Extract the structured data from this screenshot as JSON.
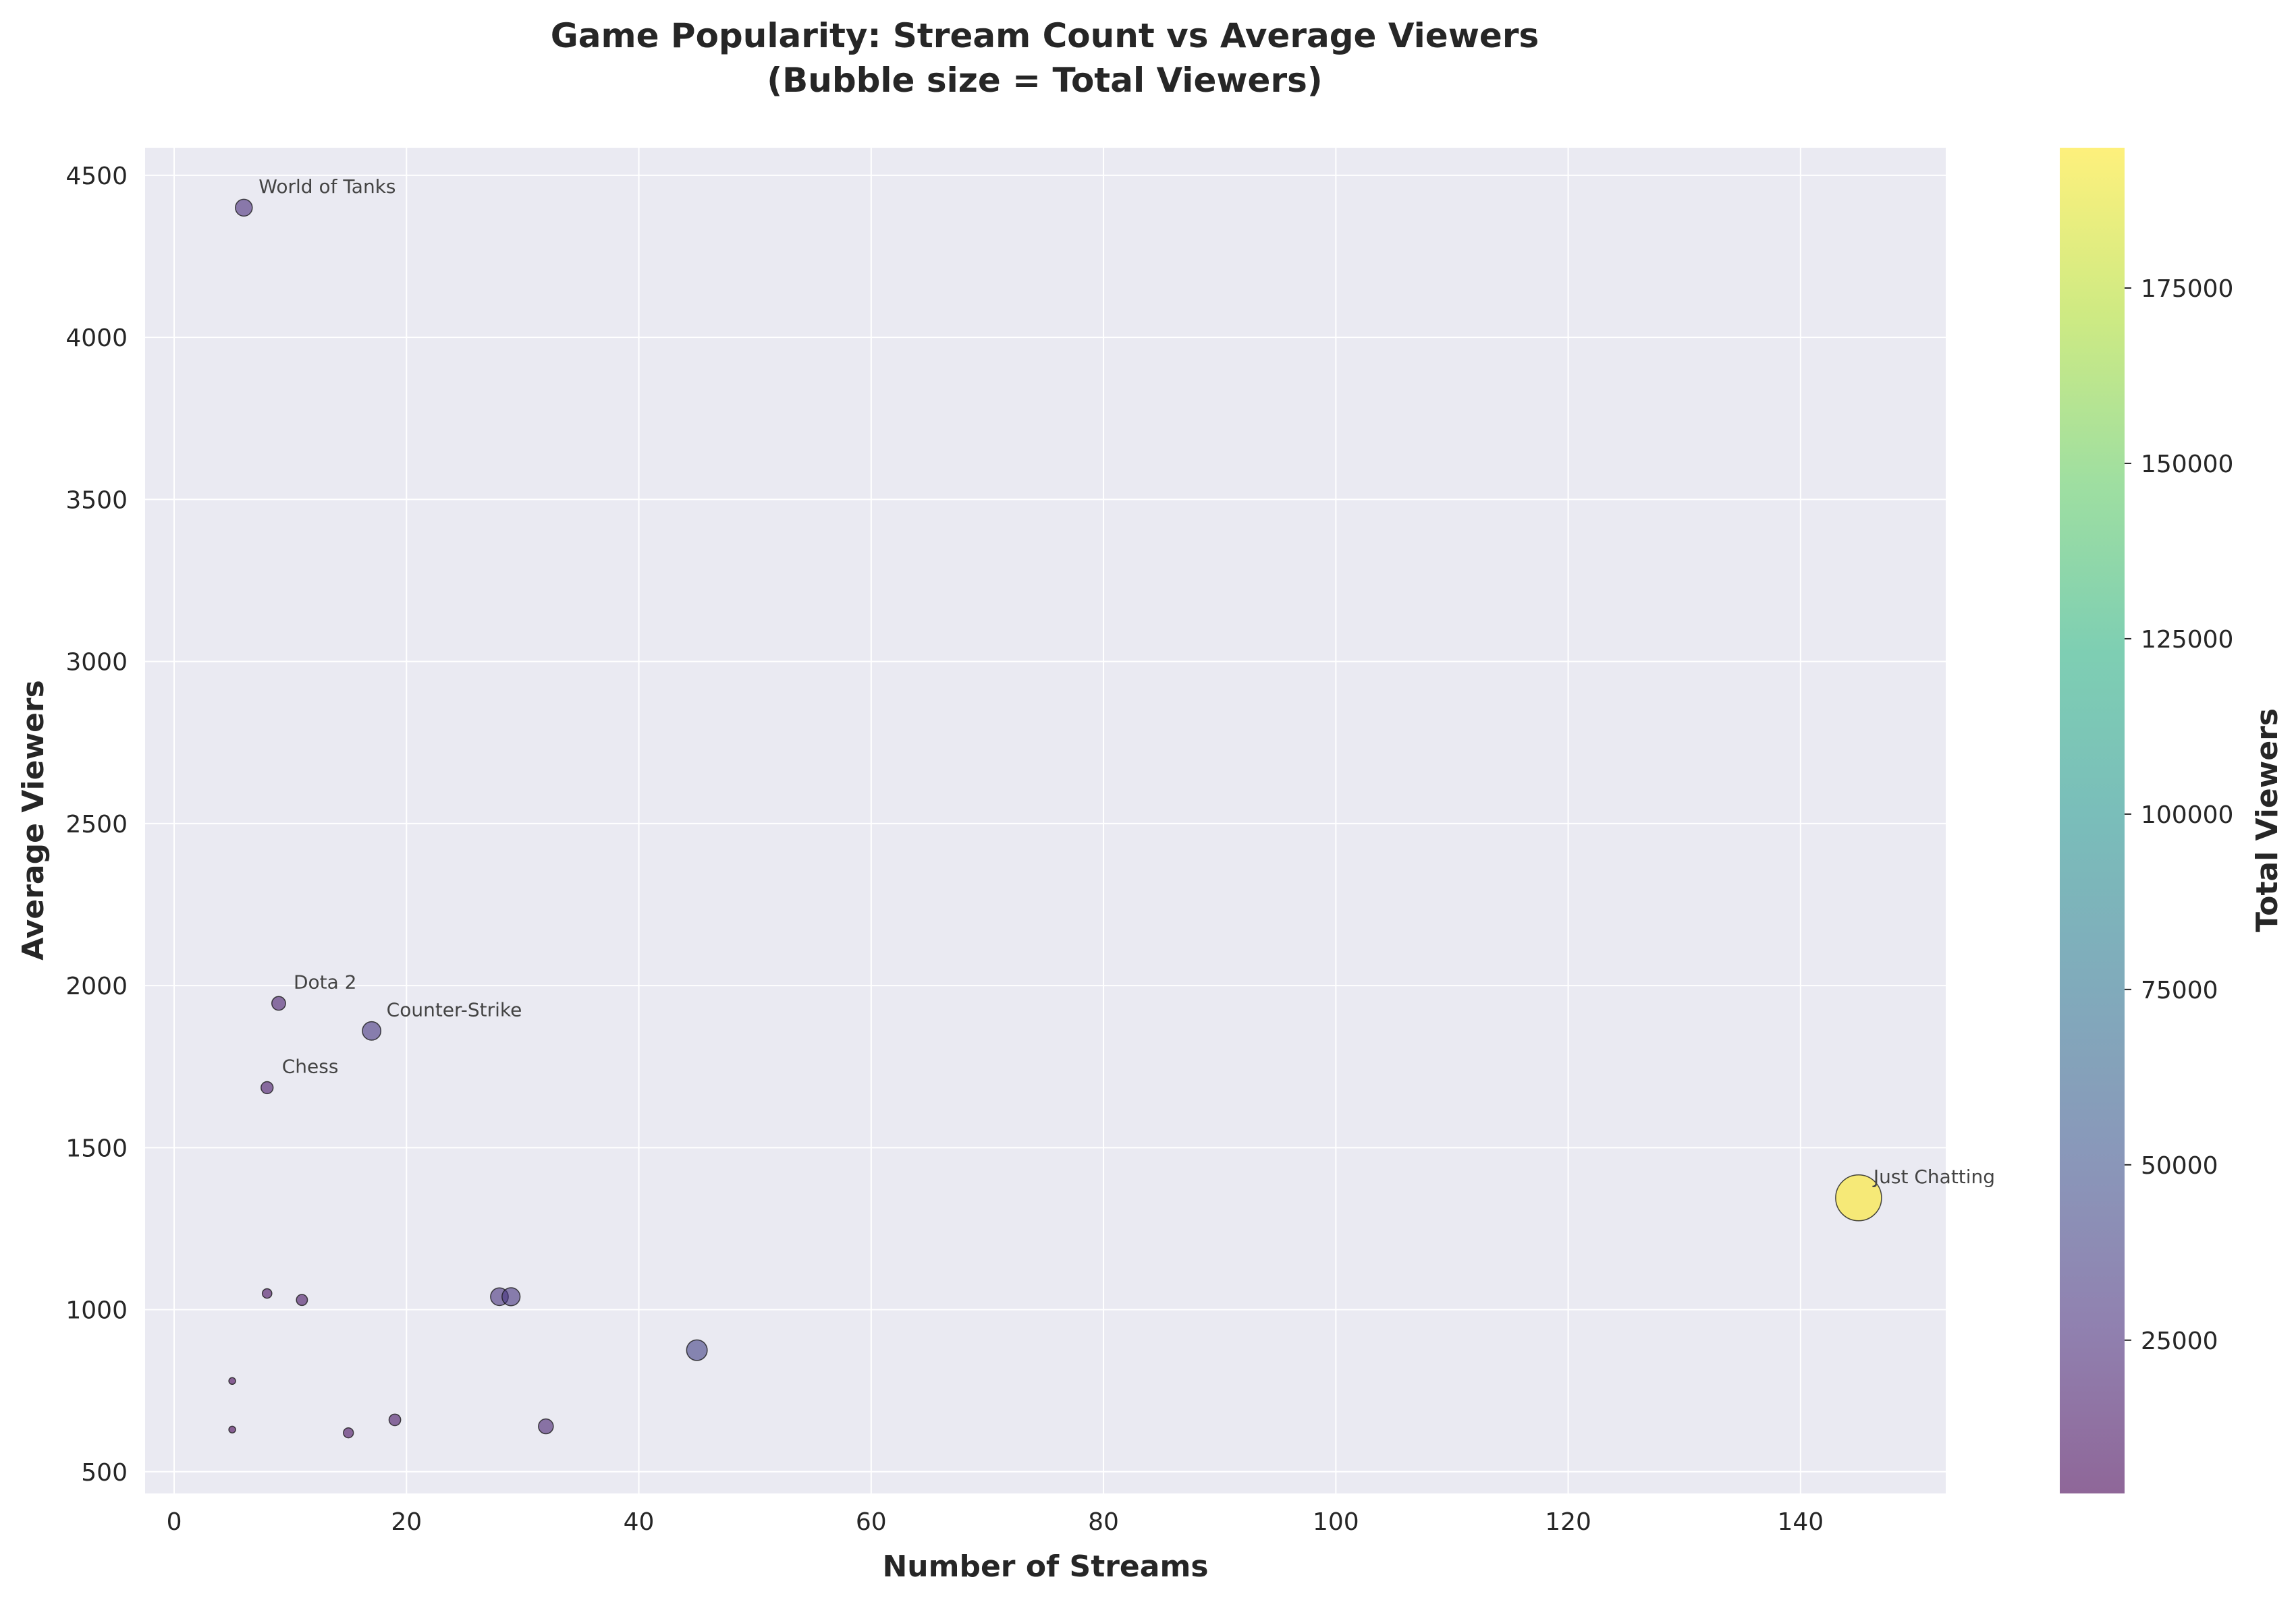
{
  "chart_data": {
    "type": "scatter",
    "title_line1": "Game Popularity: Stream Count vs Average Viewers",
    "title_line2": "(Bubble size = Total Viewers)",
    "xlabel": "Number of Streams",
    "ylabel": "Average Viewers",
    "colorbar_label": "Total Viewers",
    "xlim": [
      -2.5,
      152.5
    ],
    "ylim": [
      433,
      4585
    ],
    "x_ticks": [
      0,
      20,
      40,
      60,
      80,
      100,
      120,
      140
    ],
    "y_ticks": [
      500,
      1000,
      1500,
      2000,
      2500,
      3000,
      3500,
      4000,
      4500
    ],
    "colorbar_range": [
      3150,
      195000
    ],
    "colorbar_ticks": [
      25000,
      50000,
      75000,
      100000,
      125000,
      150000,
      175000
    ],
    "grid": true,
    "colormap": "viridis",
    "points": [
      {
        "x": 6,
        "y": 4400,
        "size": 26400,
        "label": "World of Tanks"
      },
      {
        "x": 9,
        "y": 1945,
        "size": 17500,
        "label": "Dota 2"
      },
      {
        "x": 17,
        "y": 1860,
        "size": 31600,
        "label": "Counter-Strike"
      },
      {
        "x": 8,
        "y": 1685,
        "size": 13500,
        "label": "Chess"
      },
      {
        "x": 145,
        "y": 1345,
        "size": 195000,
        "label": "Just Chatting"
      },
      {
        "x": 8,
        "y": 1050,
        "size": 8400,
        "label": ""
      },
      {
        "x": 11,
        "y": 1030,
        "size": 11300,
        "label": ""
      },
      {
        "x": 28,
        "y": 1040,
        "size": 29100,
        "label": ""
      },
      {
        "x": 29,
        "y": 1040,
        "size": 30200,
        "label": ""
      },
      {
        "x": 45,
        "y": 875,
        "size": 39400,
        "label": ""
      },
      {
        "x": 5,
        "y": 780,
        "size": 3900,
        "label": ""
      },
      {
        "x": 5,
        "y": 630,
        "size": 3150,
        "label": ""
      },
      {
        "x": 15,
        "y": 620,
        "size": 9300,
        "label": ""
      },
      {
        "x": 19,
        "y": 660,
        "size": 12500,
        "label": ""
      },
      {
        "x": 32,
        "y": 640,
        "size": 20500,
        "label": ""
      }
    ]
  }
}
